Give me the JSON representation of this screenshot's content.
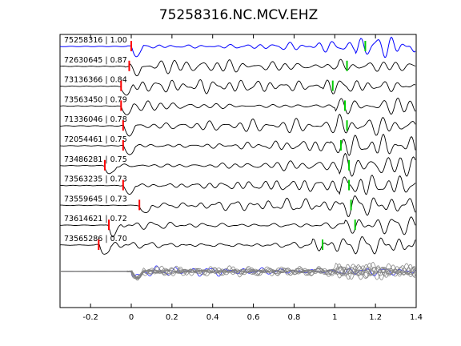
{
  "chart_data": {
    "type": "line",
    "title": "75258316.NC.MCV.EHZ",
    "xlabel": "",
    "ylabel": "",
    "xlim": [
      -0.35,
      1.4
    ],
    "xticks": [
      -0.2,
      0,
      0.2,
      0.4,
      0.6,
      0.8,
      1,
      1.2,
      1.4
    ],
    "xtick_labels": [
      "-0.2",
      "0",
      "0.2",
      "0.4",
      "0.6",
      "0.8",
      "1",
      "1.2",
      "1.4"
    ],
    "grid": false,
    "colors": {
      "master_trace": "#0000ff",
      "trace": "#000000",
      "p_pick": "#ff0000",
      "s_pick": "#00cc00",
      "stack_trace": "#808080"
    },
    "traces": [
      {
        "event_id": "75258316",
        "correlation": "1.00",
        "label": "75258316 | 1.00",
        "p_pick": 0.0,
        "s_pick": 1.15,
        "master": true
      },
      {
        "event_id": "72630645",
        "correlation": "0.87",
        "label": "72630645 | 0.87",
        "p_pick": -0.01,
        "s_pick": 1.06
      },
      {
        "event_id": "73136366",
        "correlation": "0.84",
        "label": "73136366 | 0.84",
        "p_pick": -0.05,
        "s_pick": 0.99
      },
      {
        "event_id": "73563450",
        "correlation": "0.79",
        "label": "73563450 | 0.79",
        "p_pick": -0.05,
        "s_pick": 1.05
      },
      {
        "event_id": "71336046",
        "correlation": "0.78",
        "label": "71336046 | 0.78",
        "p_pick": -0.04,
        "s_pick": 1.06
      },
      {
        "event_id": "72054461",
        "correlation": "0.75",
        "label": "72054461 | 0.75",
        "p_pick": -0.04,
        "s_pick": 1.03
      },
      {
        "event_id": "73486281",
        "correlation": "0.75",
        "label": "73486281 | 0.75",
        "p_pick": -0.13,
        "s_pick": 1.07
      },
      {
        "event_id": "73563235",
        "correlation": "0.73",
        "label": "73563235 | 0.73",
        "p_pick": -0.04,
        "s_pick": 1.07
      },
      {
        "event_id": "73559645",
        "correlation": "0.73",
        "label": "73559645 | 0.73",
        "p_pick": 0.04,
        "s_pick": 1.08
      },
      {
        "event_id": "73614621",
        "correlation": "0.72",
        "label": "73614621 | 0.72",
        "p_pick": -0.11,
        "s_pick": 1.1
      },
      {
        "event_id": "73565286",
        "correlation": "0.70",
        "label": "73565286 | 0.70",
        "p_pick": -0.16,
        "s_pick": 0.94
      }
    ],
    "stack": {
      "label": "",
      "n_overlaid": 11
    }
  }
}
